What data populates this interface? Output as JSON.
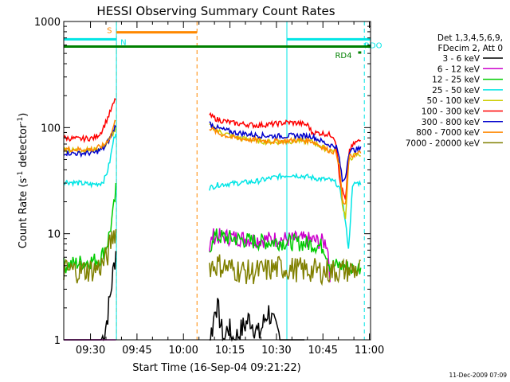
{
  "chart_data": {
    "type": "line",
    "title": "HESSI Observing Summary Count Rates",
    "xlabel": "Start Time (16-Sep-04 09:21:22)",
    "ylabel_main": "Count Rate (s",
    "ylabel_exp1": "-1",
    "ylabel_mid": " detector",
    "ylabel_exp2": "-1",
    "ylabel_end": ")",
    "x_unit": "minutes after 09:21:22",
    "xlim": [
      0,
      99
    ],
    "ylim": [
      1,
      1000
    ],
    "yscale": "log",
    "x_ticks": [
      {
        "x": 8.63,
        "label": "09:30"
      },
      {
        "x": 23.63,
        "label": "09:45"
      },
      {
        "x": 38.63,
        "label": "10:00"
      },
      {
        "x": 53.63,
        "label": "10:15"
      },
      {
        "x": 68.63,
        "label": "10:30"
      },
      {
        "x": 83.63,
        "label": "10:45"
      },
      {
        "x": 98.63,
        "label": "11:00"
      }
    ],
    "y_ticks": [
      {
        "y": 1,
        "label": "1"
      },
      {
        "y": 10,
        "label": "10"
      },
      {
        "y": 100,
        "label": "100"
      },
      {
        "y": 1000,
        "label": "1000"
      }
    ],
    "legend": {
      "position": "right",
      "header": [
        "Det 1,3,4,5,6,9,",
        "FDecim 2, Att 0"
      ]
    },
    "series": [
      {
        "name": "3 - 6 keV",
        "color": "#000000",
        "segments": [
          [
            [
              0,
              1
            ],
            [
              12,
              1
            ],
            [
              13,
              1.1
            ],
            [
              14,
              1.6
            ],
            [
              15,
              2.6
            ],
            [
              16,
              4.5
            ],
            [
              17,
              7.5
            ]
          ],
          [
            [
              47,
              1
            ],
            [
              48,
              1.3
            ],
            [
              49,
              2.2
            ],
            [
              50,
              1.8
            ],
            [
              51,
              1.2
            ],
            [
              52,
              1
            ],
            [
              53,
              1.4
            ],
            [
              54,
              1.1
            ],
            [
              55,
              1
            ],
            [
              57,
              1.2
            ],
            [
              60,
              1.6
            ],
            [
              63,
              1.1
            ],
            [
              66,
              1.9
            ],
            [
              68,
              1.3
            ],
            [
              71,
              1
            ],
            [
              74,
              1
            ],
            [
              78,
              1
            ]
          ]
        ]
      },
      {
        "name": "6 - 12 keV",
        "color": "#cc00cc",
        "segments": [
          [
            [
              0,
              1
            ],
            [
              17,
              1
            ]
          ],
          [
            [
              47,
              7
            ],
            [
              48,
              9.5
            ],
            [
              55,
              9.2
            ],
            [
              62,
              8.8
            ],
            [
              70,
              8.9
            ],
            [
              80,
              8.7
            ],
            [
              85,
              8.2
            ],
            [
              86,
              4
            ]
          ]
        ]
      },
      {
        "name": "12 - 25 keV",
        "color": "#00cc00",
        "segments": [
          [
            [
              0,
              5
            ],
            [
              6,
              5.4
            ],
            [
              10,
              5.6
            ],
            [
              12,
              6
            ],
            [
              14,
              8
            ],
            [
              15,
              11
            ],
            [
              16,
              16
            ],
            [
              17,
              28
            ]
          ],
          [
            [
              47,
              6
            ],
            [
              48,
              9.5
            ],
            [
              55,
              9
            ],
            [
              62,
              8.4
            ],
            [
              70,
              8.4
            ],
            [
              80,
              8
            ],
            [
              84,
              7.5
            ],
            [
              86,
              5
            ],
            [
              90,
              5
            ],
            [
              94,
              4.5
            ],
            [
              96,
              5
            ]
          ]
        ]
      },
      {
        "name": "25 - 50 keV",
        "color": "#00e5e5",
        "segments": [
          [
            [
              0,
              31
            ],
            [
              5,
              30
            ],
            [
              9,
              29
            ],
            [
              12,
              30
            ],
            [
              13,
              32
            ],
            [
              14,
              38
            ],
            [
              15,
              50
            ],
            [
              16,
              75
            ],
            [
              17,
              95
            ]
          ],
          [
            [
              47,
              27
            ],
            [
              50,
              29
            ],
            [
              56,
              30
            ],
            [
              62,
              31
            ],
            [
              68,
              34
            ],
            [
              73,
              36
            ],
            [
              77,
              35
            ],
            [
              82,
              33
            ],
            [
              86,
              32
            ],
            [
              88,
              30
            ],
            [
              89,
              26
            ],
            [
              90,
              20
            ],
            [
              91,
              12
            ],
            [
              92,
              7
            ],
            [
              93,
              26
            ],
            [
              94,
              30
            ],
            [
              96,
              30
            ]
          ]
        ]
      },
      {
        "name": "50 - 100 keV",
        "color": "#cccc00",
        "segments": [
          [
            [
              0,
              62
            ],
            [
              5,
              61
            ],
            [
              10,
              62
            ],
            [
              13,
              66
            ],
            [
              15,
              80
            ],
            [
              17,
              100
            ]
          ],
          [
            [
              47,
              105
            ],
            [
              50,
              92
            ],
            [
              55,
              82
            ],
            [
              62,
              75
            ],
            [
              68,
              73
            ],
            [
              75,
              75
            ],
            [
              80,
              74
            ],
            [
              85,
              62
            ],
            [
              88,
              60
            ],
            [
              89,
              40
            ],
            [
              90,
              18
            ],
            [
              91,
              14
            ],
            [
              92,
              50
            ],
            [
              94,
              55
            ],
            [
              96,
              56
            ]
          ]
        ]
      },
      {
        "name": "100 - 300 keV",
        "color": "#ff0000",
        "segments": [
          [
            [
              0,
              80
            ],
            [
              5,
              78
            ],
            [
              10,
              80
            ],
            [
              12,
              90
            ],
            [
              14,
              120
            ],
            [
              16,
              165
            ],
            [
              17,
              195
            ]
          ],
          [
            [
              47,
              130
            ],
            [
              50,
              118
            ],
            [
              55,
              110
            ],
            [
              62,
              105
            ],
            [
              68,
              108
            ],
            [
              72,
              112
            ],
            [
              76,
              110
            ],
            [
              79,
              105
            ],
            [
              80,
              90
            ],
            [
              84,
              88
            ],
            [
              87,
              84
            ],
            [
              88,
              70
            ],
            [
              89,
              32
            ],
            [
              90,
              25
            ],
            [
              91,
              20
            ],
            [
              92,
              60
            ],
            [
              94,
              72
            ],
            [
              96,
              76
            ]
          ]
        ]
      },
      {
        "name": "300 - 800 keV",
        "color": "#0000cc",
        "segments": [
          [
            [
              0,
              58
            ],
            [
              5,
              57
            ],
            [
              10,
              58
            ],
            [
              13,
              64
            ],
            [
              15,
              80
            ],
            [
              17,
              110
            ]
          ],
          [
            [
              47,
              110
            ],
            [
              50,
              98
            ],
            [
              55,
              90
            ],
            [
              62,
              85
            ],
            [
              68,
              83
            ],
            [
              75,
              84
            ],
            [
              80,
              83
            ],
            [
              85,
              70
            ],
            [
              88,
              66
            ],
            [
              89,
              50
            ],
            [
              90,
              30
            ],
            [
              91,
              35
            ],
            [
              92,
              60
            ],
            [
              94,
              62
            ],
            [
              96,
              63
            ]
          ]
        ]
      },
      {
        "name": "800 - 7000 keV",
        "color": "#ff8800",
        "segments": [
          [
            [
              0,
              63
            ],
            [
              5,
              62
            ],
            [
              10,
              63
            ],
            [
              13,
              68
            ],
            [
              15,
              82
            ],
            [
              17,
              125
            ]
          ],
          [
            [
              47,
              100
            ],
            [
              50,
              88
            ],
            [
              55,
              80
            ],
            [
              62,
              76
            ],
            [
              68,
              74
            ],
            [
              75,
              76
            ],
            [
              80,
              75
            ],
            [
              85,
              62
            ],
            [
              88,
              58
            ],
            [
              89,
              42
            ],
            [
              90,
              20
            ],
            [
              91,
              18
            ],
            [
              92,
              52
            ],
            [
              94,
              56
            ],
            [
              96,
              58
            ]
          ]
        ]
      },
      {
        "name": "7000 - 20000 keV",
        "color": "#808000",
        "segments": [
          [
            [
              0,
              4.5
            ],
            [
              6,
              4.5
            ],
            [
              10,
              4.6
            ],
            [
              12,
              5
            ],
            [
              14,
              6
            ],
            [
              15,
              8
            ],
            [
              16,
              10
            ],
            [
              17,
              11
            ]
          ],
          [
            [
              47,
              5
            ],
            [
              50,
              5.1
            ],
            [
              55,
              4.6
            ],
            [
              60,
              4.3
            ],
            [
              65,
              4.5
            ],
            [
              70,
              4.8
            ],
            [
              75,
              4.6
            ],
            [
              80,
              4.5
            ],
            [
              85,
              4.4
            ],
            [
              90,
              4.5
            ],
            [
              96,
              4.6
            ]
          ]
        ]
      }
    ],
    "flag_bars": [
      {
        "label": "S",
        "color": "#ff8800",
        "y": 790,
        "x0": 17,
        "x1": 43
      },
      {
        "label": "N",
        "color": "#00e5e5",
        "y": 680,
        "x0": 0,
        "x1": 17
      },
      {
        "label": "RDO",
        "color": "#00e5e5",
        "y": 680,
        "x0": 72,
        "x1": 99
      },
      {
        "label": "",
        "color": "#008000",
        "y": 580,
        "x0": 0,
        "x1": 99
      },
      {
        "label": "RD4",
        "color": "#008000",
        "y": 510,
        "x0": 95,
        "x1": 96
      }
    ],
    "vertical_markers": [
      {
        "x": 17,
        "color": "#ff8800",
        "style": "dashed"
      },
      {
        "x": 17,
        "color": "#00e5e5",
        "style": "solid"
      },
      {
        "x": 43,
        "color": "#ff8800",
        "style": "dashed"
      },
      {
        "x": 72,
        "color": "#00e5e5",
        "style": "solid"
      },
      {
        "x": 97,
        "color": "#00e5e5",
        "style": "dashed"
      }
    ],
    "data_gaps": [
      [
        17,
        47
      ]
    ],
    "annotation": "11-Dec-2009 07:09",
    "grid": false
  }
}
